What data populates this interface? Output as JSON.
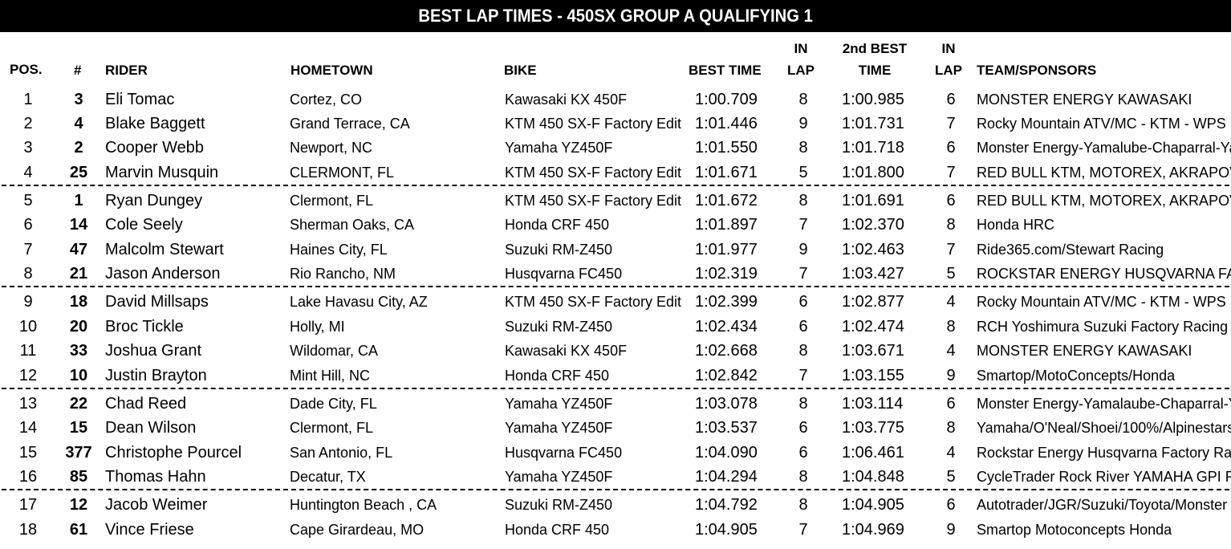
{
  "title": "BEST LAP TIMES - 450SX GROUP A QUALIFYING 1",
  "headers": {
    "pos": "POS.",
    "num": "#",
    "rider": "RIDER",
    "hometown": "HOMETOWN",
    "bike": "BIKE",
    "best_time": "BEST TIME",
    "in_lap_1a": "IN",
    "in_lap_1b": "LAP",
    "second_best_a": "2nd BEST",
    "second_best_b": "TIME",
    "in_lap_2a": "IN",
    "in_lap_2b": "LAP",
    "team": "TEAM/SPONSORS"
  },
  "rows": [
    {
      "pos": "1",
      "num": "3",
      "rider": "Eli Tomac",
      "hometown": "Cortez, CO",
      "bike": "Kawasaki KX 450F",
      "best": "1:00.709",
      "lap1": "8",
      "second": "1:00.985",
      "lap2": "6",
      "team": "MONSTER ENERGY KAWASAKI"
    },
    {
      "pos": "2",
      "num": "4",
      "rider": "Blake Baggett",
      "hometown": "Grand Terrace, CA",
      "bike": "KTM 450 SX-F Factory Edit",
      "best": "1:01.446",
      "lap1": "9",
      "second": "1:01.731",
      "lap2": "7",
      "team": "Rocky Mountain ATV/MC - KTM - WPS"
    },
    {
      "pos": "3",
      "num": "2",
      "rider": "Cooper Webb",
      "hometown": "Newport, NC",
      "bike": "Yamaha YZ450F",
      "best": "1:01.550",
      "lap1": "8",
      "second": "1:01.718",
      "lap2": "6",
      "team": "Monster Energy-Yamalube-Chaparral-Ya"
    },
    {
      "pos": "4",
      "num": "25",
      "rider": "Marvin Musquin",
      "hometown": "CLERMONT, FL",
      "bike": "KTM 450 SX-F Factory Edit",
      "best": "1:01.671",
      "lap1": "5",
      "second": "1:01.800",
      "lap2": "7",
      "team": "RED BULL KTM, MOTOREX, AKRAPOV"
    },
    {
      "pos": "5",
      "num": "1",
      "rider": "Ryan Dungey",
      "hometown": "Clermont, FL",
      "bike": "KTM 450 SX-F Factory Edit",
      "best": "1:01.672",
      "lap1": "8",
      "second": "1:01.691",
      "lap2": "6",
      "team": "RED BULL KTM, MOTOREX, AKRAPOV"
    },
    {
      "pos": "6",
      "num": "14",
      "rider": "Cole Seely",
      "hometown": "Sherman Oaks, CA",
      "bike": "Honda CRF 450",
      "best": "1:01.897",
      "lap1": "7",
      "second": "1:02.370",
      "lap2": "8",
      "team": "Honda HRC"
    },
    {
      "pos": "7",
      "num": "47",
      "rider": "Malcolm Stewart",
      "hometown": "Haines City, FL",
      "bike": "Suzuki RM-Z450",
      "best": "1:01.977",
      "lap1": "9",
      "second": "1:02.463",
      "lap2": "7",
      "team": "Ride365.com/Stewart Racing"
    },
    {
      "pos": "8",
      "num": "21",
      "rider": "Jason Anderson",
      "hometown": "Rio Rancho, NM",
      "bike": "Husqvarna FC450",
      "best": "1:02.319",
      "lap1": "7",
      "second": "1:03.427",
      "lap2": "5",
      "team": "ROCKSTAR ENERGY HUSQVARNA FA"
    },
    {
      "pos": "9",
      "num": "18",
      "rider": "David Millsaps",
      "hometown": "Lake Havasu City, AZ",
      "bike": "KTM 450 SX-F Factory Edit",
      "best": "1:02.399",
      "lap1": "6",
      "second": "1:02.877",
      "lap2": "4",
      "team": "Rocky Mountain ATV/MC - KTM - WPS"
    },
    {
      "pos": "10",
      "num": "20",
      "rider": "Broc Tickle",
      "hometown": "Holly, MI",
      "bike": "Suzuki RM-Z450",
      "best": "1:02.434",
      "lap1": "6",
      "second": "1:02.474",
      "lap2": "8",
      "team": "RCH Yoshimura Suzuki Factory Racing"
    },
    {
      "pos": "11",
      "num": "33",
      "rider": "Joshua Grant",
      "hometown": "Wildomar, CA",
      "bike": "Kawasaki KX 450F",
      "best": "1:02.668",
      "lap1": "8",
      "second": "1:03.671",
      "lap2": "4",
      "team": "MONSTER ENERGY KAWASAKI"
    },
    {
      "pos": "12",
      "num": "10",
      "rider": "Justin Brayton",
      "hometown": "Mint Hill, NC",
      "bike": "Honda CRF 450",
      "best": "1:02.842",
      "lap1": "7",
      "second": "1:03.155",
      "lap2": "9",
      "team": "Smartop/MotoConcepts/Honda"
    },
    {
      "pos": "13",
      "num": "22",
      "rider": "Chad Reed",
      "hometown": "Dade City, FL",
      "bike": "Yamaha YZ450F",
      "best": "1:03.078",
      "lap1": "8",
      "second": "1:03.114",
      "lap2": "6",
      "team": "Monster Energy-Yamalaube-Chaparral-Y"
    },
    {
      "pos": "14",
      "num": "15",
      "rider": "Dean Wilson",
      "hometown": "Clermont, FL",
      "bike": "Yamaha YZ450F",
      "best": "1:03.537",
      "lap1": "6",
      "second": "1:03.775",
      "lap2": "8",
      "team": "Yamaha/O'Neal/Shoei/100%/Alpinestars/"
    },
    {
      "pos": "15",
      "num": "377",
      "rider": "Christophe Pourcel",
      "hometown": "San Antonio, FL",
      "bike": "Husqvarna FC450",
      "best": "1:04.090",
      "lap1": "6",
      "second": "1:06.461",
      "lap2": "4",
      "team": "Rockstar Energy Husqvarna Factory Rac"
    },
    {
      "pos": "16",
      "num": "85",
      "rider": "Thomas Hahn",
      "hometown": "Decatur, TX",
      "bike": "Yamaha YZ450F",
      "best": "1:04.294",
      "lap1": "8",
      "second": "1:04.848",
      "lap2": "5",
      "team": "CycleTrader Rock River YAMAHA GPI R"
    },
    {
      "pos": "17",
      "num": "12",
      "rider": "Jacob Weimer",
      "hometown": "Huntington Beach , CA",
      "bike": "Suzuki RM-Z450",
      "best": "1:04.792",
      "lap1": "8",
      "second": "1:04.905",
      "lap2": "6",
      "team": "Autotrader/JGR/Suzuki/Toyota/Monster E"
    },
    {
      "pos": "18",
      "num": "61",
      "rider": "Vince Friese",
      "hometown": "Cape Girardeau, MO",
      "bike": "Honda CRF 450",
      "best": "1:04.905",
      "lap1": "7",
      "second": "1:04.969",
      "lap2": "9",
      "team": "Smartop Motoconcepts Honda"
    }
  ]
}
